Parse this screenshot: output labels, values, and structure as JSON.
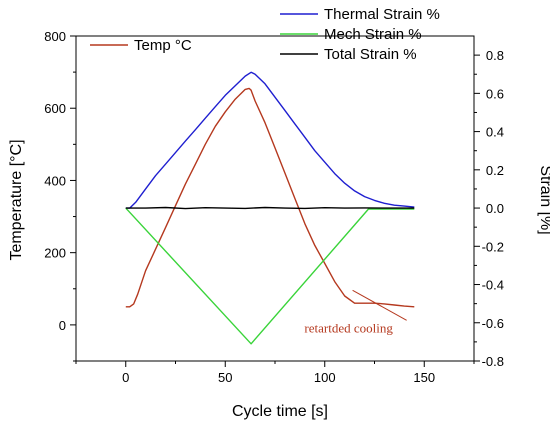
{
  "chart_data": {
    "type": "line",
    "title": "",
    "xlabel": "Cycle time [s]",
    "ylabel_left": "Temperature [°C]",
    "ylabel_right": "Strain [%]",
    "xlim": [
      -25,
      175
    ],
    "ylim_left": [
      -100,
      800
    ],
    "ylim_right": [
      -0.8,
      0.9
    ],
    "x_ticks": [
      0,
      50,
      100,
      150
    ],
    "y_left_ticks": [
      0,
      200,
      400,
      600,
      800
    ],
    "y_right_ticks": [
      -0.8,
      -0.6,
      -0.4,
      -0.2,
      0.0,
      0.2,
      0.4,
      0.6,
      0.8
    ],
    "x_tick_labels": [
      "0",
      "50",
      "100",
      "150"
    ],
    "y_left_tick_labels": [
      "0",
      "200",
      "400",
      "600",
      "800"
    ],
    "y_right_tick_labels": [
      "-0.8",
      "-0.6",
      "-0.4",
      "-0.2",
      "0.0",
      "0.2",
      "0.4",
      "0.6",
      "0.8"
    ],
    "grid": false,
    "series": [
      {
        "name": "Temp °C",
        "axis": "left",
        "color": "#b5391f",
        "x": [
          0,
          2,
          4,
          6,
          10,
          15,
          20,
          25,
          30,
          35,
          40,
          45,
          50,
          55,
          60,
          62,
          63,
          65,
          70,
          75,
          80,
          85,
          90,
          95,
          100,
          105,
          110,
          115,
          120,
          125,
          130,
          135,
          140,
          145
        ],
        "y": [
          50,
          50,
          58,
          85,
          150,
          210,
          270,
          330,
          390,
          445,
          500,
          550,
          590,
          625,
          652,
          655,
          650,
          620,
          560,
          490,
          420,
          350,
          280,
          220,
          170,
          120,
          80,
          60,
          60,
          60,
          58,
          55,
          52,
          50
        ]
      },
      {
        "name": "Thermal Strain %",
        "axis": "right",
        "color": "#1f1fd0",
        "x": [
          0,
          2,
          5,
          10,
          15,
          20,
          25,
          30,
          35,
          40,
          45,
          50,
          55,
          60,
          63,
          65,
          70,
          75,
          80,
          85,
          90,
          95,
          100,
          105,
          110,
          115,
          120,
          125,
          130,
          135,
          140,
          145
        ],
        "y": [
          0.0,
          0.0,
          0.03,
          0.1,
          0.17,
          0.23,
          0.29,
          0.35,
          0.41,
          0.47,
          0.53,
          0.59,
          0.64,
          0.69,
          0.71,
          0.7,
          0.65,
          0.58,
          0.51,
          0.44,
          0.37,
          0.3,
          0.24,
          0.18,
          0.13,
          0.09,
          0.06,
          0.04,
          0.025,
          0.015,
          0.01,
          0.005
        ]
      },
      {
        "name": "Mech Strain %",
        "axis": "right",
        "color": "#3ad43a",
        "x": [
          0,
          63,
          122,
          145
        ],
        "y": [
          0.0,
          -0.71,
          -0.005,
          -0.005
        ]
      },
      {
        "name": "Total Strain %",
        "axis": "right",
        "color": "#000000",
        "x": [
          0,
          10,
          20,
          30,
          40,
          50,
          60,
          70,
          80,
          90,
          100,
          110,
          120,
          130,
          140,
          145
        ],
        "y": [
          0.0,
          0.0,
          0.003,
          -0.003,
          0.002,
          0.0,
          -0.002,
          0.003,
          0.0,
          -0.002,
          0.002,
          0.0,
          0.001,
          0.0,
          0.0,
          0.0
        ]
      }
    ],
    "annotations": [
      {
        "text": "retartded cooling",
        "color": "#b5391f",
        "x": 112,
        "y": -0.65,
        "arrow_to": {
          "x": 114,
          "y": -0.43
        }
      }
    ]
  }
}
